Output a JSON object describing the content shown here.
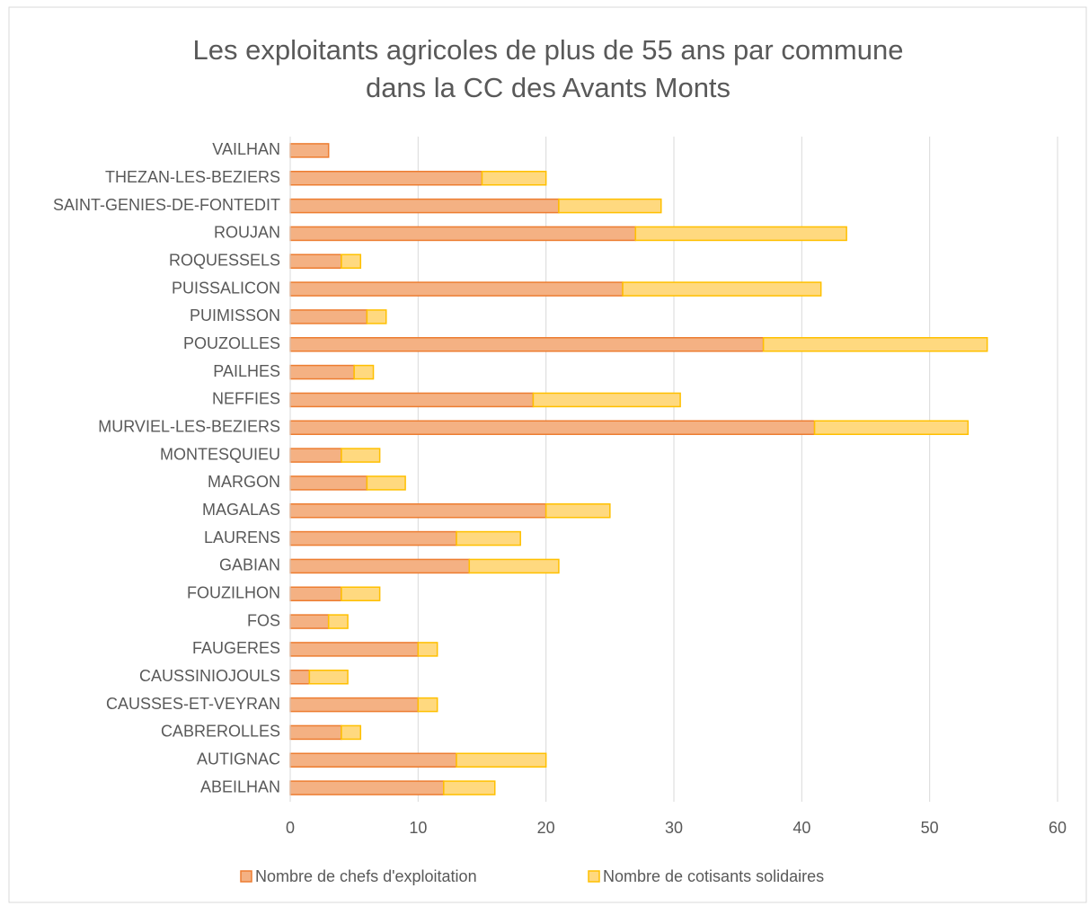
{
  "chart_data": {
    "type": "bar",
    "orientation": "horizontal",
    "stacked": true,
    "title": "Les exploitants agricoles de plus de 55 ans par commune",
    "subtitle": "dans la CC des Avants Monts",
    "categories": [
      "VAILHAN",
      "THEZAN-LES-BEZIERS",
      "SAINT-GENIES-DE-FONTEDIT",
      "ROUJAN",
      "ROQUESSELS",
      "PUISSALICON",
      "PUIMISSON",
      "POUZOLLES",
      "PAILHES",
      "NEFFIES",
      "MURVIEL-LES-BEZIERS",
      "MONTESQUIEU",
      "MARGON",
      "MAGALAS",
      "LAURENS",
      "GABIAN",
      "FOUZILHON",
      "FOS",
      "FAUGERES",
      "CAUSSINIOJOULS",
      "CAUSSES-ET-VEYRAN",
      "CABREROLLES",
      "AUTIGNAC",
      "ABEILHAN"
    ],
    "series": [
      {
        "name": "Nombre de chefs d'exploitation",
        "color": "#f4b183",
        "edge": "#ed7d31",
        "values": [
          3,
          15,
          21,
          27,
          4,
          26,
          6,
          37,
          5,
          19,
          41,
          4,
          6,
          20,
          13,
          14,
          4,
          3,
          10,
          1.5,
          10,
          4,
          13,
          12
        ]
      },
      {
        "name": "Nombre de cotisants solidaires",
        "color": "#ffd97f",
        "edge": "#ffc000",
        "values": [
          0,
          5,
          8,
          16.5,
          1.5,
          15.5,
          1.5,
          17.5,
          1.5,
          11.5,
          12,
          3,
          3,
          5,
          5,
          7,
          3,
          1.5,
          1.5,
          3,
          1.5,
          1.5,
          7,
          4
        ]
      }
    ],
    "xlim": [
      0,
      60
    ],
    "xticks": [
      0,
      10,
      20,
      30,
      40,
      50,
      60
    ],
    "grid": true,
    "legend": "bottom"
  }
}
